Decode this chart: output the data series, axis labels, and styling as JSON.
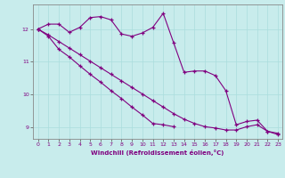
{
  "title": "",
  "xlabel": "Windchill (Refroidissement éolien,°C)",
  "ylabel": "",
  "bg_color": "#c8ecec",
  "line_color": "#800080",
  "grid_color": "#aadddd",
  "xlim": [
    -0.5,
    23.4
  ],
  "ylim": [
    8.65,
    12.75
  ],
  "yticks": [
    9,
    10,
    11,
    12
  ],
  "xticks": [
    0,
    1,
    2,
    3,
    4,
    5,
    6,
    7,
    8,
    9,
    10,
    11,
    12,
    13,
    14,
    15,
    16,
    17,
    18,
    19,
    20,
    21,
    22,
    23
  ],
  "series1": [
    12.0,
    12.15,
    12.15,
    11.9,
    12.05,
    12.35,
    12.38,
    12.28,
    11.85,
    11.78,
    11.88,
    12.05,
    12.48,
    11.58,
    10.68,
    10.72,
    10.72,
    10.58,
    10.12,
    9.08,
    9.18,
    9.22,
    8.88,
    8.82
  ],
  "series2": [
    12.0,
    11.78,
    11.38,
    11.15,
    10.88,
    10.62,
    10.38,
    10.12,
    9.88,
    9.62,
    9.38,
    9.12,
    9.08,
    9.02,
    null,
    null,
    null,
    null,
    null,
    null,
    null,
    null,
    null,
    null
  ],
  "series3": [
    12.0,
    11.82,
    11.62,
    11.42,
    11.22,
    11.02,
    10.82,
    10.62,
    10.42,
    10.22,
    10.02,
    9.82,
    9.62,
    9.42,
    9.25,
    9.12,
    9.02,
    8.98,
    8.92,
    8.92,
    9.02,
    9.08,
    8.88,
    8.78
  ]
}
